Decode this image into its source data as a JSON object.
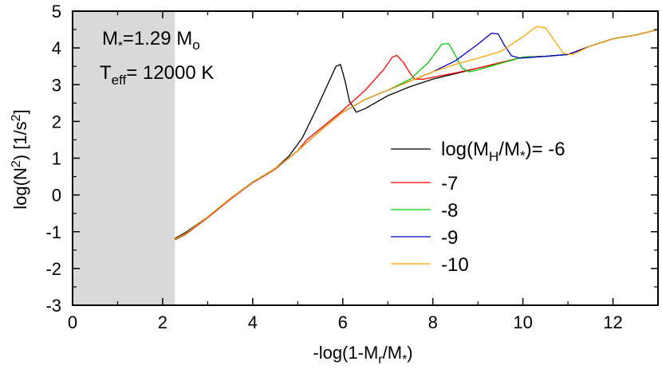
{
  "chart_data": {
    "type": "line",
    "title": "",
    "xlabel": {
      "main": "-log(1-M",
      "sub1": "r",
      "mid": "/M",
      "sub2": "*",
      "end": ")"
    },
    "ylabel": {
      "pre": "log(N",
      "sup1": "2",
      "mid": ") [1/s",
      "sup2": "2",
      "end": "]"
    },
    "xlim": [
      0,
      13
    ],
    "ylim": [
      -3,
      5
    ],
    "xticks": [
      "0",
      "2",
      "4",
      "6",
      "8",
      "10",
      "12"
    ],
    "yticks": [
      "-3",
      "-2",
      "-1",
      "0",
      "1",
      "2",
      "3",
      "4",
      "5"
    ],
    "shaded_region": {
      "x": [
        0,
        2.27
      ],
      "color": "#d9d9d9"
    },
    "annotations": {
      "mass": {
        "main": "M",
        "sub": "*",
        "eq": "=1.29 M",
        "sub2": "o"
      },
      "teff": {
        "main": "T",
        "sub": "eff",
        "eq": "= 12000 K"
      }
    },
    "legend": {
      "position": "right",
      "title_prefix": "log(M",
      "title_sub1": "H",
      "title_mid": "/M",
      "title_sub2": "*",
      "title_suffix": ")= -6"
    },
    "series": [
      {
        "name": "-6",
        "color": "#000000",
        "points": [
          [
            2.27,
            -1.18
          ],
          [
            2.5,
            -1.03
          ],
          [
            3.0,
            -0.6
          ],
          [
            3.5,
            -0.1
          ],
          [
            4.0,
            0.35
          ],
          [
            4.5,
            0.72
          ],
          [
            4.8,
            1.05
          ],
          [
            5.1,
            1.55
          ],
          [
            5.4,
            2.3
          ],
          [
            5.7,
            3.1
          ],
          [
            5.85,
            3.5
          ],
          [
            5.95,
            3.55
          ],
          [
            6.05,
            3.1
          ],
          [
            6.15,
            2.55
          ],
          [
            6.3,
            2.25
          ],
          [
            6.5,
            2.35
          ],
          [
            7.0,
            2.7
          ],
          [
            7.5,
            2.95
          ],
          [
            8.0,
            3.15
          ],
          [
            8.5,
            3.3
          ],
          [
            9.0,
            3.45
          ],
          [
            9.5,
            3.6
          ],
          [
            10.0,
            3.75
          ],
          [
            10.5,
            3.77
          ],
          [
            11.0,
            3.82
          ],
          [
            11.5,
            4.05
          ],
          [
            12.0,
            4.25
          ],
          [
            12.5,
            4.35
          ],
          [
            13.0,
            4.5
          ]
        ]
      },
      {
        "name": "-7",
        "color": "#ff0000",
        "points": [
          [
            2.27,
            -1.22
          ],
          [
            2.5,
            -1.08
          ],
          [
            3.0,
            -0.62
          ],
          [
            3.5,
            -0.12
          ],
          [
            4.0,
            0.33
          ],
          [
            4.5,
            0.7
          ],
          [
            5.0,
            1.2
          ],
          [
            5.2,
            1.5
          ],
          [
            5.5,
            1.8
          ],
          [
            6.0,
            2.3
          ],
          [
            6.5,
            2.85
          ],
          [
            6.9,
            3.4
          ],
          [
            7.1,
            3.75
          ],
          [
            7.2,
            3.8
          ],
          [
            7.35,
            3.6
          ],
          [
            7.5,
            3.3
          ],
          [
            7.6,
            3.15
          ],
          [
            7.8,
            3.15
          ],
          [
            8.0,
            3.2
          ],
          [
            8.5,
            3.32
          ],
          [
            9.0,
            3.45
          ],
          [
            9.5,
            3.6
          ],
          [
            10.0,
            3.75
          ],
          [
            10.5,
            3.77
          ],
          [
            11.0,
            3.82
          ],
          [
            11.5,
            4.05
          ],
          [
            12.0,
            4.25
          ],
          [
            12.5,
            4.35
          ],
          [
            13.0,
            4.5
          ]
        ]
      },
      {
        "name": "-8",
        "color": "#00cc00",
        "points": [
          [
            2.27,
            -1.2
          ],
          [
            2.5,
            -1.06
          ],
          [
            3.0,
            -0.6
          ],
          [
            3.5,
            -0.1
          ],
          [
            4.0,
            0.34
          ],
          [
            4.5,
            0.72
          ],
          [
            5.0,
            1.2
          ],
          [
            5.5,
            1.75
          ],
          [
            6.0,
            2.25
          ],
          [
            6.5,
            2.6
          ],
          [
            7.0,
            2.85
          ],
          [
            7.5,
            3.15
          ],
          [
            7.9,
            3.6
          ],
          [
            8.2,
            4.1
          ],
          [
            8.35,
            4.12
          ],
          [
            8.5,
            3.8
          ],
          [
            8.65,
            3.45
          ],
          [
            8.8,
            3.35
          ],
          [
            9.0,
            3.4
          ],
          [
            9.5,
            3.58
          ],
          [
            10.0,
            3.75
          ],
          [
            10.5,
            3.77
          ],
          [
            11.0,
            3.82
          ],
          [
            11.5,
            4.05
          ],
          [
            12.0,
            4.25
          ],
          [
            12.5,
            4.35
          ],
          [
            13.0,
            4.5
          ]
        ]
      },
      {
        "name": "-9",
        "color": "#0000cc",
        "points": [
          [
            2.27,
            -1.2
          ],
          [
            2.5,
            -1.06
          ],
          [
            3.0,
            -0.6
          ],
          [
            3.5,
            -0.1
          ],
          [
            4.0,
            0.34
          ],
          [
            4.5,
            0.72
          ],
          [
            5.0,
            1.2
          ],
          [
            5.5,
            1.75
          ],
          [
            6.0,
            2.25
          ],
          [
            6.5,
            2.6
          ],
          [
            7.0,
            2.85
          ],
          [
            7.5,
            3.1
          ],
          [
            8.0,
            3.35
          ],
          [
            8.5,
            3.65
          ],
          [
            9.0,
            4.1
          ],
          [
            9.3,
            4.4
          ],
          [
            9.45,
            4.38
          ],
          [
            9.6,
            4.05
          ],
          [
            9.75,
            3.78
          ],
          [
            9.95,
            3.72
          ],
          [
            10.5,
            3.77
          ],
          [
            11.0,
            3.82
          ],
          [
            11.5,
            4.05
          ],
          [
            12.0,
            4.25
          ],
          [
            12.5,
            4.35
          ],
          [
            13.0,
            4.5
          ]
        ]
      },
      {
        "name": "-10",
        "color": "#ffa500",
        "points": [
          [
            2.27,
            -1.2
          ],
          [
            2.5,
            -1.06
          ],
          [
            3.0,
            -0.6
          ],
          [
            3.5,
            -0.1
          ],
          [
            4.0,
            0.34
          ],
          [
            4.5,
            0.72
          ],
          [
            5.0,
            1.2
          ],
          [
            5.5,
            1.75
          ],
          [
            6.0,
            2.25
          ],
          [
            6.5,
            2.6
          ],
          [
            7.0,
            2.85
          ],
          [
            7.5,
            3.1
          ],
          [
            8.0,
            3.35
          ],
          [
            8.5,
            3.55
          ],
          [
            9.0,
            3.72
          ],
          [
            9.5,
            3.9
          ],
          [
            10.0,
            4.3
          ],
          [
            10.3,
            4.58
          ],
          [
            10.5,
            4.55
          ],
          [
            10.7,
            4.2
          ],
          [
            10.9,
            3.85
          ],
          [
            11.1,
            3.82
          ],
          [
            11.5,
            4.05
          ],
          [
            12.0,
            4.25
          ],
          [
            12.5,
            4.35
          ],
          [
            13.0,
            4.5
          ]
        ]
      }
    ]
  }
}
